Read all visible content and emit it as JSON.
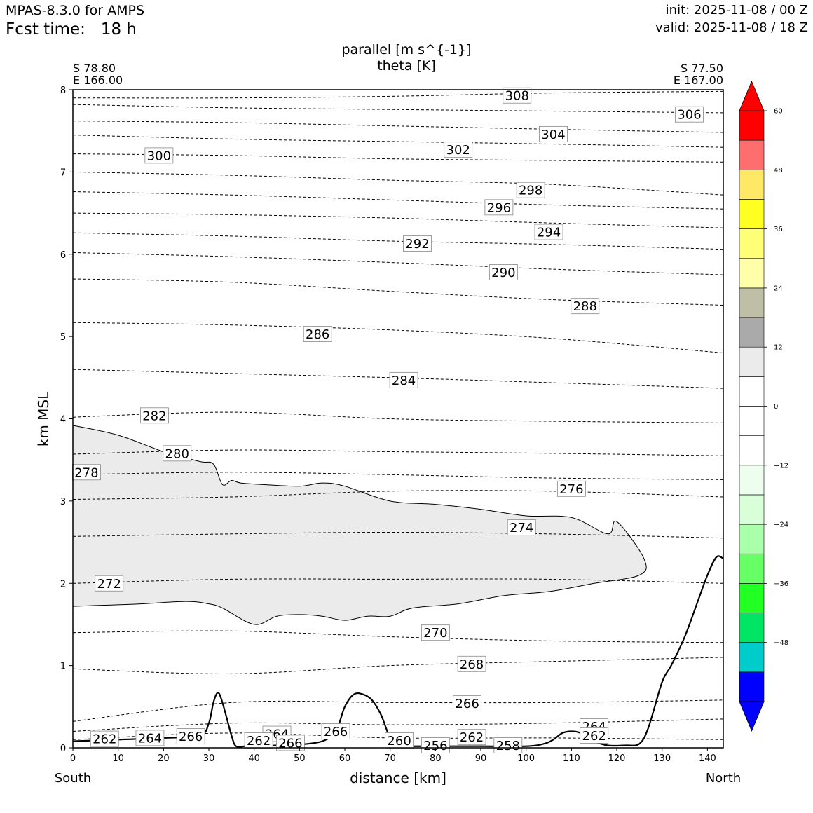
{
  "header": {
    "model": "MPAS-8.3.0 for AMPS",
    "fcst_label": "Fcst time:",
    "fcst_value": "18 h",
    "init": "init: 2025-11-08 / 00 Z",
    "valid": "valid: 2025-11-08 / 18 Z"
  },
  "corners": {
    "left_lat": "S 78.80",
    "left_lon": "E 166.00",
    "right_lat": "S 77.50",
    "right_lon": "E 167.00",
    "south": "South",
    "north": "North"
  },
  "chart_data": {
    "type": "contour",
    "title": [
      "parallel [m s^{-1}]",
      "theta [K]"
    ],
    "xlabel": "distance [km]",
    "ylabel": "km MSL",
    "xlim": [
      0,
      143.5
    ],
    "ylim": [
      0,
      8
    ],
    "x_ticks": [
      0,
      10,
      20,
      30,
      40,
      50,
      60,
      70,
      80,
      90,
      100,
      110,
      120,
      130,
      140
    ],
    "y_ticks": [
      0,
      1,
      2,
      3,
      4,
      5,
      6,
      7,
      8
    ],
    "shading_field": "parallel [m s^{-1}]",
    "colorbar": {
      "min": -60,
      "max": 60,
      "ticks": [
        -48,
        -36,
        -24,
        -12,
        0,
        12,
        24,
        36,
        48,
        60
      ],
      "tick_labels": [
        "−48",
        "−36",
        "−24",
        "−12",
        "0",
        "12",
        "24",
        "36",
        "48",
        "60"
      ],
      "bins": [
        {
          "from": -60,
          "to": -54,
          "color": "#0000ff"
        },
        {
          "from": -54,
          "to": -48,
          "color": "#00cccc"
        },
        {
          "from": -48,
          "to": -42,
          "color": "#00e664"
        },
        {
          "from": -42,
          "to": -36,
          "color": "#22ff22"
        },
        {
          "from": -36,
          "to": -30,
          "color": "#66ff66"
        },
        {
          "from": -30,
          "to": -24,
          "color": "#aaffaa"
        },
        {
          "from": -24,
          "to": -18,
          "color": "#d8ffd8"
        },
        {
          "from": -18,
          "to": -12,
          "color": "#eefeee"
        },
        {
          "from": -12,
          "to": -6,
          "color": "#ffffff"
        },
        {
          "from": -6,
          "to": 0,
          "color": "#ffffff"
        },
        {
          "from": 0,
          "to": 6,
          "color": "#ffffff"
        },
        {
          "from": 6,
          "to": 12,
          "color": "#ebebeb"
        },
        {
          "from": 12,
          "to": 18,
          "color": "#aaaaaa"
        },
        {
          "from": 18,
          "to": 24,
          "color": "#bfbfa8"
        },
        {
          "from": 24,
          "to": 30,
          "color": "#ffffaa"
        },
        {
          "from": 30,
          "to": 36,
          "color": "#ffff77"
        },
        {
          "from": 36,
          "to": 42,
          "color": "#ffff22"
        },
        {
          "from": 42,
          "to": 48,
          "color": "#ffe866"
        },
        {
          "from": 48,
          "to": 54,
          "color": "#ff6e6e"
        },
        {
          "from": 54,
          "to": 60,
          "color": "#ff0000"
        }
      ],
      "under_color": "#0000ff",
      "over_color": "#ff0000"
    },
    "shaded_region_color": "#ebebeb",
    "theta_contours": [
      {
        "label": "308",
        "y": [
          7.9,
          7.9,
          7.92,
          7.96,
          7.98
        ]
      },
      {
        "label": "306",
        "y": [
          7.82,
          7.78,
          7.76,
          7.74,
          7.72
        ]
      },
      {
        "label": "304",
        "y": [
          7.62,
          7.6,
          7.56,
          7.52,
          7.48
        ]
      },
      {
        "label": "302",
        "y": [
          7.45,
          7.4,
          7.37,
          7.34,
          7.3
        ]
      },
      {
        "label": "300",
        "y": [
          7.22,
          7.2,
          7.16,
          7.14,
          7.12
        ]
      },
      {
        "label": "298",
        "y": [
          7.0,
          6.96,
          6.9,
          6.85,
          6.72
        ]
      },
      {
        "label": "296",
        "y": [
          6.76,
          6.72,
          6.66,
          6.6,
          6.55
        ]
      },
      {
        "label": "294",
        "y": [
          6.5,
          6.48,
          6.44,
          6.38,
          6.32
        ]
      },
      {
        "label": "292",
        "y": [
          6.26,
          6.22,
          6.16,
          6.12,
          6.06
        ]
      },
      {
        "label": "290",
        "y": [
          6.02,
          5.97,
          5.9,
          5.82,
          5.75
        ]
      },
      {
        "label": "288",
        "y": [
          5.7,
          5.66,
          5.55,
          5.45,
          5.38
        ]
      },
      {
        "label": "286",
        "y": [
          5.17,
          5.14,
          5.08,
          4.98,
          4.8
        ]
      },
      {
        "label": "284",
        "y": [
          4.6,
          4.55,
          4.5,
          4.44,
          4.37
        ]
      },
      {
        "label": "282",
        "y": [
          4.02,
          4.08,
          4.0,
          3.97,
          3.95
        ]
      },
      {
        "label": "280",
        "y": [
          3.57,
          3.62,
          3.6,
          3.58,
          3.55
        ]
      },
      {
        "label": "278",
        "y": [
          3.32,
          3.35,
          3.32,
          3.28,
          3.26
        ]
      },
      {
        "label": "276",
        "y": [
          3.02,
          3.05,
          3.12,
          3.12,
          3.05
        ]
      },
      {
        "label": "274",
        "y": [
          2.57,
          2.6,
          2.62,
          2.6,
          2.55
        ]
      },
      {
        "label": "272",
        "y": [
          2.0,
          2.05,
          2.05,
          2.05,
          2.0
        ]
      },
      {
        "label": "270",
        "y": [
          1.4,
          1.42,
          1.35,
          1.3,
          1.28
        ]
      },
      {
        "label": "268",
        "y": [
          0.96,
          0.9,
          1.0,
          1.05,
          1.1
        ]
      },
      {
        "label": "266",
        "y": [
          0.32,
          0.55,
          0.55,
          0.55,
          0.58
        ]
      },
      {
        "label": "264",
        "y": [
          0.2,
          0.3,
          0.28,
          0.3,
          0.35
        ]
      },
      {
        "label": "262",
        "y": [
          0.1,
          0.18,
          0.12,
          0.12,
          0.1
        ]
      }
    ],
    "theta_x": [
      0,
      35,
      70,
      105,
      143.5
    ],
    "theta_labels": [
      {
        "text": "308",
        "x": 98,
        "y": 7.93
      },
      {
        "text": "306",
        "x": 136,
        "y": 7.7
      },
      {
        "text": "304",
        "x": 106,
        "y": 7.46
      },
      {
        "text": "302",
        "x": 85,
        "y": 7.27
      },
      {
        "text": "300",
        "x": 19,
        "y": 7.2
      },
      {
        "text": "298",
        "x": 101,
        "y": 6.78
      },
      {
        "text": "296",
        "x": 94,
        "y": 6.57
      },
      {
        "text": "294",
        "x": 105,
        "y": 6.27
      },
      {
        "text": "292",
        "x": 76,
        "y": 6.13
      },
      {
        "text": "290",
        "x": 95,
        "y": 5.78
      },
      {
        "text": "288",
        "x": 113,
        "y": 5.37
      },
      {
        "text": "286",
        "x": 54,
        "y": 5.03
      },
      {
        "text": "284",
        "x": 73,
        "y": 4.47
      },
      {
        "text": "282",
        "x": 18,
        "y": 4.04
      },
      {
        "text": "280",
        "x": 23,
        "y": 3.58
      },
      {
        "text": "278",
        "x": 3,
        "y": 3.35
      },
      {
        "text": "276",
        "x": 110,
        "y": 3.15
      },
      {
        "text": "274",
        "x": 99,
        "y": 2.68
      },
      {
        "text": "272",
        "x": 8,
        "y": 2.0
      },
      {
        "text": "270",
        "x": 80,
        "y": 1.4
      },
      {
        "text": "268",
        "x": 88,
        "y": 1.02
      },
      {
        "text": "266",
        "x": 87,
        "y": 0.54
      },
      {
        "text": "266",
        "x": 58,
        "y": 0.2
      },
      {
        "text": "264",
        "x": 115,
        "y": 0.26
      },
      {
        "text": "264",
        "x": 17,
        "y": 0.12
      },
      {
        "text": "266",
        "x": 26,
        "y": 0.14
      },
      {
        "text": "264",
        "x": 45,
        "y": 0.17
      },
      {
        "text": "262",
        "x": 7,
        "y": 0.11
      },
      {
        "text": "262",
        "x": 41,
        "y": 0.09
      },
      {
        "text": "266",
        "x": 48,
        "y": 0.06
      },
      {
        "text": "260",
        "x": 72,
        "y": 0.09
      },
      {
        "text": "256",
        "x": 80,
        "y": 0.03
      },
      {
        "text": "262",
        "x": 88,
        "y": 0.13
      },
      {
        "text": "258",
        "x": 96,
        "y": 0.03
      },
      {
        "text": "262",
        "x": 115,
        "y": 0.15
      }
    ],
    "shaded_region": {
      "x": [
        0,
        10,
        20,
        28,
        31,
        33,
        35,
        37,
        42,
        50,
        55,
        60,
        70,
        80,
        90,
        100,
        110,
        118,
        120,
        126,
        125,
        115,
        105,
        95,
        85,
        75,
        70,
        65,
        60,
        55,
        50,
        45,
        40,
        33,
        30,
        25,
        15,
        5,
        0
      ],
      "y": [
        3.92,
        3.8,
        3.6,
        3.48,
        3.45,
        3.2,
        3.25,
        3.22,
        3.2,
        3.18,
        3.22,
        3.18,
        3.0,
        2.96,
        2.9,
        2.82,
        2.8,
        2.6,
        2.75,
        2.3,
        2.1,
        2.0,
        1.9,
        1.85,
        1.75,
        1.7,
        1.6,
        1.6,
        1.55,
        1.6,
        1.62,
        1.6,
        1.5,
        1.7,
        1.75,
        1.78,
        1.75,
        1.73,
        1.72
      ]
    },
    "terrain": {
      "x": [
        0,
        10,
        20,
        28,
        30,
        31,
        32,
        33,
        35,
        36,
        38,
        40,
        45,
        50,
        55,
        58,
        60,
        62,
        64,
        66,
        68,
        70,
        72,
        75,
        80,
        90,
        100,
        104,
        106,
        108,
        110,
        112,
        115,
        118,
        122,
        125,
        127,
        130,
        132,
        135,
        138,
        140,
        142,
        143.5
      ],
      "y": [
        0.08,
        0.1,
        0.12,
        0.15,
        0.3,
        0.55,
        0.67,
        0.55,
        0.15,
        0.02,
        0.02,
        0.02,
        0.03,
        0.04,
        0.08,
        0.2,
        0.5,
        0.65,
        0.65,
        0.58,
        0.4,
        0.12,
        0.03,
        0.02,
        0.02,
        0.02,
        0.02,
        0.05,
        0.1,
        0.18,
        0.2,
        0.18,
        0.08,
        0.03,
        0.03,
        0.05,
        0.25,
        0.8,
        1.0,
        1.35,
        1.8,
        2.1,
        2.32,
        2.3
      ]
    }
  }
}
